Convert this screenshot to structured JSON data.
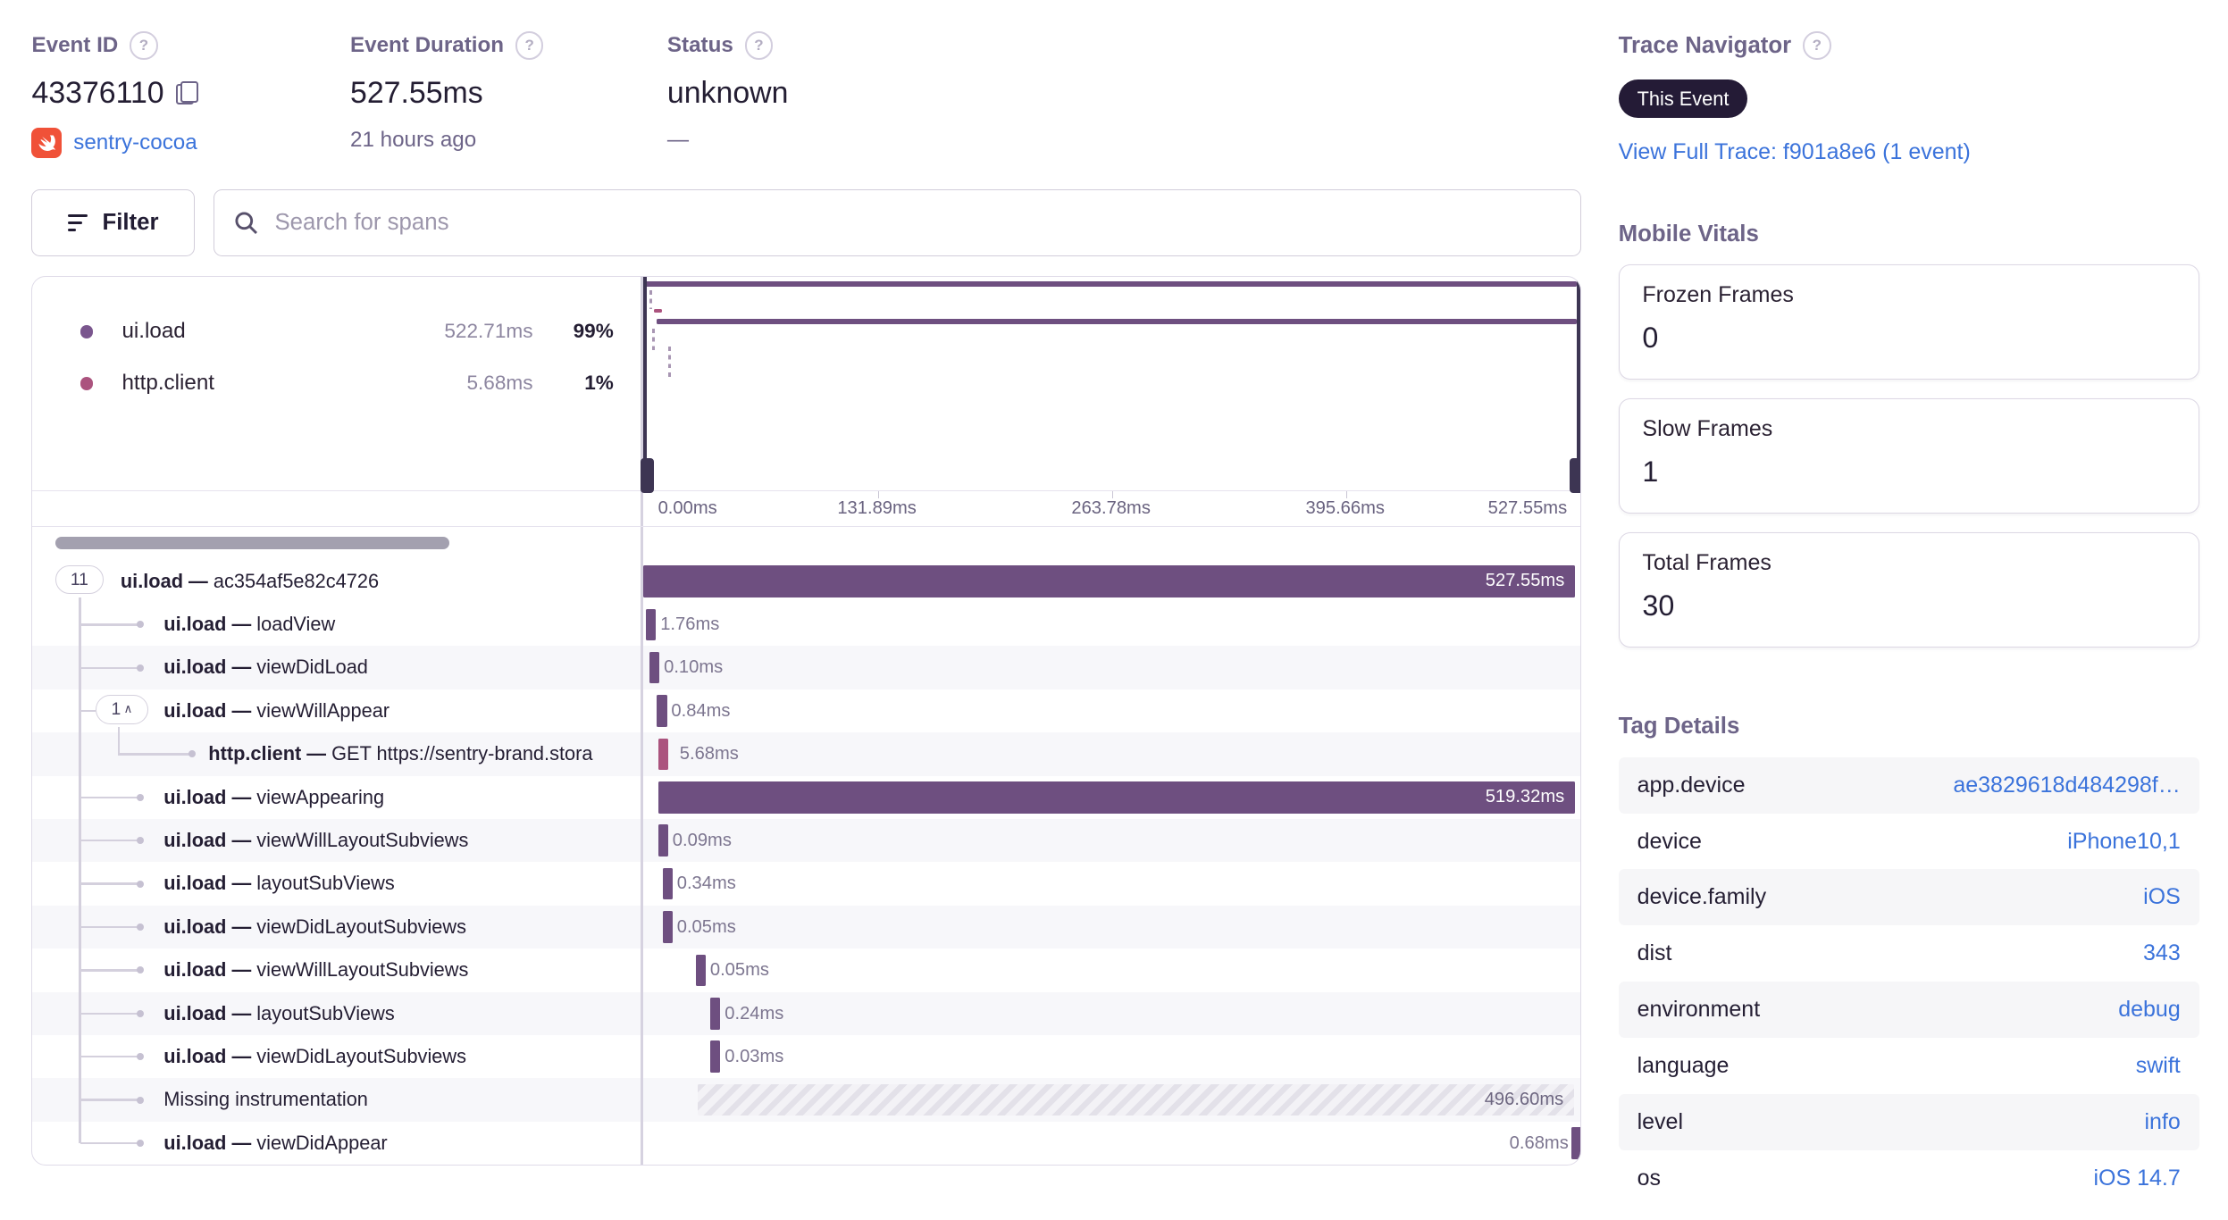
{
  "colors": {
    "ui_load": "#6e4f80",
    "ui_load_dot": "#7a568e",
    "http_client": "#ab537e",
    "accent_blue": "#3b73db",
    "swift_orange": "#f05138",
    "badge_dark_bg": "#241b36"
  },
  "header": {
    "event_id": {
      "label": "Event ID",
      "value": "43376110",
      "project": "sentry-cocoa"
    },
    "duration": {
      "label": "Event Duration",
      "value": "527.55ms",
      "sub": "21 hours ago"
    },
    "status": {
      "label": "Status",
      "value": "unknown",
      "sub": "—"
    }
  },
  "trace_navigator": {
    "label": "Trace Navigator",
    "badge": "This Event",
    "link": "View Full Trace: f901a8e6 (1 event)"
  },
  "toolbar": {
    "filter_label": "Filter",
    "search_placeholder": "Search for spans"
  },
  "legend": [
    {
      "op": "ui.load",
      "duration": "522.71ms",
      "percent": "99%",
      "color": "#7a568e"
    },
    {
      "op": "http.client",
      "duration": "5.68ms",
      "percent": "1%",
      "color": "#ab537e"
    }
  ],
  "axis_ticks": [
    "0.00ms",
    "131.89ms",
    "263.78ms",
    "395.66ms",
    "527.55ms"
  ],
  "spans": {
    "total_ms": 527.55,
    "rows": [
      {
        "badge": "11",
        "op": "ui.load",
        "desc": "ac354af5e82c4726",
        "depth": 0,
        "start_ms": 0,
        "duration_ms": 527.55,
        "duration_label": "527.55ms",
        "bar": "ui",
        "label_pos": "inside"
      },
      {
        "op": "ui.load",
        "desc": "loadView",
        "depth": 1,
        "start_ms": 1.2,
        "duration_ms": 1.76,
        "duration_label": "1.76ms",
        "bar": "ui",
        "label_pos": "after"
      },
      {
        "op": "ui.load",
        "desc": "viewDidLoad",
        "depth": 1,
        "start_ms": 3.3,
        "duration_ms": 0.1,
        "duration_label": "0.10ms",
        "bar": "ui",
        "label_pos": "after"
      },
      {
        "badge": "1",
        "chevron": "∧",
        "op": "ui.load",
        "desc": "viewWillAppear",
        "depth": 1,
        "start_ms": 7.5,
        "duration_ms": 0.84,
        "duration_label": "0.84ms",
        "bar": "ui",
        "label_pos": "after"
      },
      {
        "op": "http.client",
        "desc": "GET https://sentry-brand.stora",
        "depth": 2,
        "start_ms": 8.2,
        "duration_ms": 5.68,
        "duration_label": "5.68ms",
        "bar": "http",
        "label_pos": "after"
      },
      {
        "op": "ui.load",
        "desc": "viewAppearing",
        "depth": 1,
        "start_ms": 8.2,
        "duration_ms": 519.32,
        "duration_label": "519.32ms",
        "bar": "ui",
        "label_pos": "inside"
      },
      {
        "op": "ui.load",
        "desc": "viewWillLayoutSubviews",
        "depth": 1,
        "start_ms": 8.2,
        "duration_ms": 0.09,
        "duration_label": "0.09ms",
        "bar": "ui",
        "label_pos": "after"
      },
      {
        "op": "ui.load",
        "desc": "layoutSubViews",
        "depth": 1,
        "start_ms": 10.7,
        "duration_ms": 0.34,
        "duration_label": "0.34ms",
        "bar": "ui",
        "label_pos": "after"
      },
      {
        "op": "ui.load",
        "desc": "viewDidLayoutSubviews",
        "depth": 1,
        "start_ms": 10.7,
        "duration_ms": 0.05,
        "duration_label": "0.05ms",
        "bar": "ui",
        "label_pos": "after"
      },
      {
        "op": "ui.load",
        "desc": "viewWillLayoutSubviews",
        "depth": 1,
        "start_ms": 29.5,
        "duration_ms": 0.05,
        "duration_label": "0.05ms",
        "bar": "ui",
        "label_pos": "after"
      },
      {
        "op": "ui.load",
        "desc": "layoutSubViews",
        "depth": 1,
        "start_ms": 37.8,
        "duration_ms": 0.24,
        "duration_label": "0.24ms",
        "bar": "ui",
        "label_pos": "after"
      },
      {
        "op": "ui.load",
        "desc": "viewDidLayoutSubviews",
        "depth": 1,
        "start_ms": 37.8,
        "duration_ms": 0.03,
        "duration_label": "0.03ms",
        "bar": "ui",
        "label_pos": "after"
      },
      {
        "op": "",
        "desc": "Missing instrumentation",
        "depth": 1,
        "start_ms": 30.4,
        "duration_ms": 496.6,
        "duration_label": "496.60ms",
        "bar": "missing",
        "label_pos": "inside"
      },
      {
        "op": "ui.load",
        "desc": "viewDidAppear",
        "depth": 1,
        "start_ms": 526.87,
        "duration_ms": 0.68,
        "duration_label": "0.68ms",
        "bar": "ui",
        "label_pos": "before"
      }
    ]
  },
  "mobile_vitals": {
    "title": "Mobile Vitals",
    "cards": [
      {
        "label": "Frozen Frames",
        "value": "0"
      },
      {
        "label": "Slow Frames",
        "value": "1"
      },
      {
        "label": "Total Frames",
        "value": "30"
      }
    ]
  },
  "tag_details": {
    "title": "Tag Details",
    "rows": [
      {
        "key": "app.device",
        "value": "ae3829618d484298f…"
      },
      {
        "key": "device",
        "value": "iPhone10,1"
      },
      {
        "key": "device.family",
        "value": "iOS"
      },
      {
        "key": "dist",
        "value": "343"
      },
      {
        "key": "environment",
        "value": "debug"
      },
      {
        "key": "language",
        "value": "swift"
      },
      {
        "key": "level",
        "value": "info"
      },
      {
        "key": "os",
        "value": "iOS 14.7"
      }
    ]
  }
}
